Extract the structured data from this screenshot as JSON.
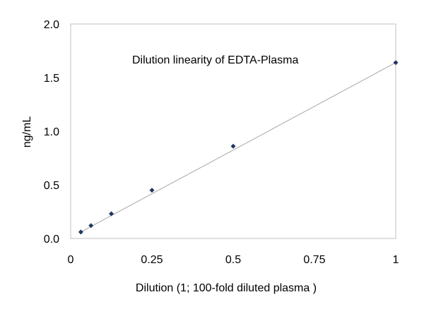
{
  "chart_data": {
    "type": "scatter",
    "title": "Dilution linearity of EDTA-Plasma",
    "xlabel": "Dilution (1; 100-fold diluted plasma )",
    "ylabel": "ng/mL",
    "xlim": [
      0,
      1
    ],
    "ylim": [
      0,
      2
    ],
    "x_ticks": [
      0,
      0.25,
      0.5,
      0.75,
      1
    ],
    "x_tick_labels": [
      "0",
      "0.25",
      "0.5",
      "0.75",
      "1"
    ],
    "y_ticks": [
      0,
      0.5,
      1,
      1.5,
      2
    ],
    "y_tick_labels": [
      "0.0",
      "0.5",
      "1.0",
      "1.5",
      "2.0"
    ],
    "grid": false,
    "legend": "none",
    "series": [
      {
        "x": [
          0.03125,
          0.0625,
          0.125,
          0.25,
          0.5,
          1
        ],
        "y": [
          0.06,
          0.12,
          0.23,
          0.45,
          0.86,
          1.64
        ],
        "marker": "diamond",
        "color": "#1f3864"
      }
    ],
    "trendline": {
      "type": "linear",
      "x": [
        0.03125,
        1
      ],
      "y": [
        0.06,
        1.64
      ],
      "color": "#a6a6a6"
    }
  }
}
